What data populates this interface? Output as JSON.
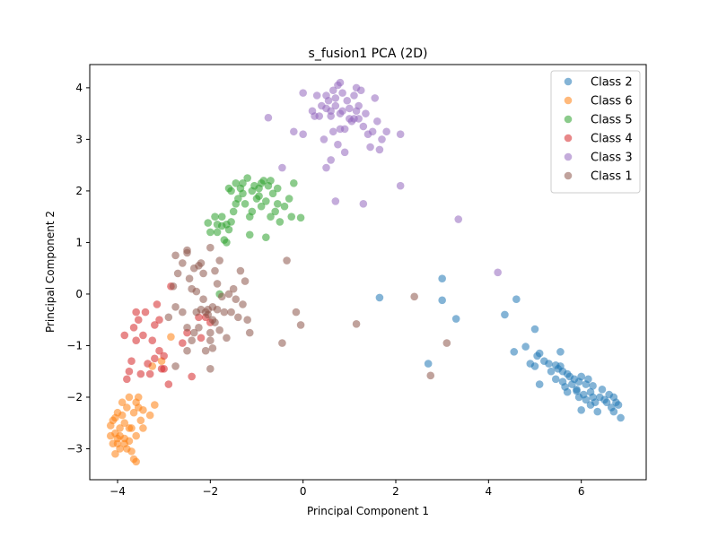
{
  "chart_data": {
    "type": "scatter",
    "title": "s_fusion1 PCA (2D)",
    "xlabel": "Principal Component 1",
    "ylabel": "Principal Component 2",
    "xlim": [
      -4.6,
      7.4
    ],
    "ylim": [
      -3.6,
      4.45
    ],
    "xticks": [
      -4,
      -2,
      0,
      2,
      4,
      6
    ],
    "yticks": [
      -3,
      -2,
      -1,
      0,
      1,
      2,
      3,
      4
    ],
    "grid": false,
    "legend_position": "top-right",
    "marker_alpha": 0.55,
    "series": [
      {
        "name": "Class 2",
        "color": "#1f77b4",
        "points": [
          [
            1.65,
            -0.07
          ],
          [
            3.0,
            0.3
          ],
          [
            3.0,
            -0.12
          ],
          [
            3.3,
            -0.48
          ],
          [
            2.7,
            -1.35
          ],
          [
            4.35,
            -0.4
          ],
          [
            4.6,
            -0.1
          ],
          [
            4.55,
            -1.12
          ],
          [
            4.8,
            -1.02
          ],
          [
            5.0,
            -0.68
          ],
          [
            4.9,
            -1.35
          ],
          [
            5.0,
            -1.4
          ],
          [
            5.1,
            -1.75
          ],
          [
            5.05,
            -1.2
          ],
          [
            5.1,
            -1.15
          ],
          [
            5.2,
            -1.3
          ],
          [
            5.3,
            -1.35
          ],
          [
            5.35,
            -1.5
          ],
          [
            5.45,
            -1.38
          ],
          [
            5.5,
            -1.45
          ],
          [
            5.55,
            -1.4
          ],
          [
            5.45,
            -1.65
          ],
          [
            5.6,
            -1.5
          ],
          [
            5.6,
            -1.7
          ],
          [
            5.55,
            -1.12
          ],
          [
            5.7,
            -1.55
          ],
          [
            5.7,
            -1.9
          ],
          [
            5.75,
            -1.6
          ],
          [
            5.8,
            -1.75
          ],
          [
            5.85,
            -1.65
          ],
          [
            5.9,
            -1.85
          ],
          [
            5.95,
            -2.0
          ],
          [
            5.95,
            -1.7
          ],
          [
            6.0,
            -2.25
          ],
          [
            6.05,
            -1.95
          ],
          [
            6.1,
            -1.75
          ],
          [
            6.1,
            -2.05
          ],
          [
            6.15,
            -1.65
          ],
          [
            6.2,
            -1.9
          ],
          [
            6.25,
            -2.0
          ],
          [
            6.25,
            -1.78
          ],
          [
            6.3,
            -2.1
          ],
          [
            6.35,
            -2.28
          ],
          [
            6.4,
            -2.0
          ],
          [
            6.45,
            -1.85
          ],
          [
            6.5,
            -2.05
          ],
          [
            6.55,
            -2.1
          ],
          [
            6.6,
            -1.95
          ],
          [
            6.65,
            -2.2
          ],
          [
            6.7,
            -2.28
          ],
          [
            6.75,
            -2.1
          ],
          [
            6.8,
            -2.15
          ],
          [
            6.85,
            -2.4
          ],
          [
            5.9,
            -1.88
          ],
          [
            6.0,
            -1.6
          ],
          [
            5.65,
            -1.8
          ],
          [
            6.2,
            -2.15
          ],
          [
            6.7,
            -2.0
          ]
        ]
      },
      {
        "name": "Class 6",
        "color": "#ff7f0e",
        "points": [
          [
            -2.85,
            -0.83
          ],
          [
            -3.05,
            -1.3
          ],
          [
            -3.25,
            -1.4
          ],
          [
            -3.2,
            -2.15
          ],
          [
            -3.3,
            -2.35
          ],
          [
            -3.45,
            -2.25
          ],
          [
            -3.5,
            -2.45
          ],
          [
            -3.55,
            -2.0
          ],
          [
            -3.6,
            -2.1
          ],
          [
            -3.65,
            -2.3
          ],
          [
            -3.7,
            -2.6
          ],
          [
            -3.75,
            -2.0
          ],
          [
            -3.8,
            -2.2
          ],
          [
            -3.85,
            -2.5
          ],
          [
            -3.9,
            -2.35
          ],
          [
            -3.95,
            -2.6
          ],
          [
            -4.0,
            -2.3
          ],
          [
            -4.05,
            -2.7
          ],
          [
            -4.1,
            -2.45
          ],
          [
            -4.15,
            -2.75
          ],
          [
            -4.0,
            -2.9
          ],
          [
            -3.95,
            -3.0
          ],
          [
            -3.8,
            -3.0
          ],
          [
            -3.75,
            -2.85
          ],
          [
            -3.7,
            -3.05
          ],
          [
            -4.05,
            -3.1
          ],
          [
            -3.85,
            -2.8
          ],
          [
            -3.65,
            -3.2
          ],
          [
            -3.6,
            -3.25
          ],
          [
            -4.1,
            -2.9
          ],
          [
            -4.15,
            -2.55
          ],
          [
            -3.9,
            -2.1
          ],
          [
            -3.75,
            -2.6
          ],
          [
            -3.55,
            -2.2
          ],
          [
            -3.45,
            -2.6
          ],
          [
            -3.6,
            -2.75
          ],
          [
            -4.0,
            -2.8
          ],
          [
            -3.85,
            -2.9
          ],
          [
            -4.05,
            -2.4
          ],
          [
            -3.95,
            -2.75
          ]
        ]
      },
      {
        "name": "Class 5",
        "color": "#2ca02c",
        "points": [
          [
            -2.05,
            1.38
          ],
          [
            -1.9,
            1.5
          ],
          [
            -1.85,
            1.2
          ],
          [
            -1.75,
            1.5
          ],
          [
            -1.7,
            1.05
          ],
          [
            -1.65,
            1.35
          ],
          [
            -1.6,
            1.25
          ],
          [
            -1.55,
            1.4
          ],
          [
            -1.5,
            1.6
          ],
          [
            -1.45,
            1.75
          ],
          [
            -1.4,
            1.85
          ],
          [
            -1.35,
            2.05
          ],
          [
            -1.3,
            1.95
          ],
          [
            -1.25,
            1.75
          ],
          [
            -1.2,
            2.25
          ],
          [
            -1.15,
            1.5
          ],
          [
            -1.1,
            2.0
          ],
          [
            -1.05,
            2.1
          ],
          [
            -1.0,
            1.85
          ],
          [
            -0.95,
            2.05
          ],
          [
            -0.9,
            1.7
          ],
          [
            -0.85,
            2.2
          ],
          [
            -0.8,
            1.8
          ],
          [
            -0.75,
            2.1
          ],
          [
            -0.7,
            1.5
          ],
          [
            -0.65,
            1.95
          ],
          [
            -0.6,
            1.6
          ],
          [
            -0.55,
            2.05
          ],
          [
            -0.5,
            1.4
          ],
          [
            -0.4,
            1.7
          ],
          [
            -0.3,
            1.85
          ],
          [
            -0.25,
            1.5
          ],
          [
            -0.2,
            2.15
          ],
          [
            -0.05,
            1.48
          ],
          [
            -0.8,
            1.1
          ],
          [
            -1.15,
            1.15
          ],
          [
            -1.65,
            1.0
          ],
          [
            -1.75,
            1.32
          ],
          [
            -1.45,
            2.15
          ],
          [
            -1.55,
            2.0
          ],
          [
            -1.6,
            2.05
          ],
          [
            -1.85,
            1.35
          ],
          [
            -2.0,
            1.2
          ],
          [
            -1.1,
            1.6
          ],
          [
            -0.7,
            2.2
          ],
          [
            -0.9,
            2.15
          ],
          [
            -1.3,
            2.15
          ],
          [
            -0.95,
            1.9
          ],
          [
            -0.55,
            1.75
          ],
          [
            -1.8,
            0.0
          ]
        ]
      },
      {
        "name": "Class 4",
        "color": "#d62728",
        "points": [
          [
            -2.85,
            0.15
          ],
          [
            -2.5,
            -0.75
          ],
          [
            -2.6,
            -0.95
          ],
          [
            -2.4,
            -1.6
          ],
          [
            -2.25,
            -0.45
          ],
          [
            -2.2,
            -0.85
          ],
          [
            -2.9,
            -1.75
          ],
          [
            -3.0,
            -1.2
          ],
          [
            -3.05,
            -1.45
          ],
          [
            -3.1,
            -0.5
          ],
          [
            -3.15,
            -0.2
          ],
          [
            -3.2,
            -0.6
          ],
          [
            -3.25,
            -0.9
          ],
          [
            -3.3,
            -1.55
          ],
          [
            -3.35,
            -1.35
          ],
          [
            -3.4,
            -0.35
          ],
          [
            -3.45,
            -0.8
          ],
          [
            -3.5,
            -1.55
          ],
          [
            -3.55,
            -0.5
          ],
          [
            -3.6,
            -0.9
          ],
          [
            -3.65,
            -0.65
          ],
          [
            -3.7,
            -1.3
          ],
          [
            -3.75,
            -1.5
          ],
          [
            -3.8,
            -1.65
          ],
          [
            -3.85,
            -0.8
          ],
          [
            -3.1,
            -1.1
          ],
          [
            -3.0,
            -1.45
          ],
          [
            -3.2,
            -1.25
          ],
          [
            -3.6,
            -0.35
          ],
          [
            -2.1,
            -0.45
          ],
          [
            -2.0,
            -0.55
          ]
        ]
      },
      {
        "name": "Class 3",
        "color": "#9467bd",
        "points": [
          [
            -0.75,
            3.42
          ],
          [
            -0.2,
            3.15
          ],
          [
            0.0,
            3.1
          ],
          [
            0.0,
            3.9
          ],
          [
            0.2,
            3.55
          ],
          [
            0.3,
            3.85
          ],
          [
            0.35,
            3.45
          ],
          [
            0.4,
            3.65
          ],
          [
            0.45,
            3.0
          ],
          [
            0.5,
            3.6
          ],
          [
            0.5,
            2.45
          ],
          [
            0.5,
            3.85
          ],
          [
            0.55,
            3.75
          ],
          [
            0.6,
            3.55
          ],
          [
            0.6,
            3.45
          ],
          [
            0.65,
            3.95
          ],
          [
            0.65,
            3.15
          ],
          [
            0.7,
            3.65
          ],
          [
            0.7,
            3.8
          ],
          [
            0.75,
            2.9
          ],
          [
            0.75,
            4.05
          ],
          [
            0.8,
            4.1
          ],
          [
            0.8,
            3.5
          ],
          [
            0.85,
            3.55
          ],
          [
            0.85,
            3.9
          ],
          [
            0.9,
            3.2
          ],
          [
            0.9,
            2.75
          ],
          [
            0.95,
            3.75
          ],
          [
            1.0,
            3.6
          ],
          [
            1.05,
            3.35
          ],
          [
            1.1,
            3.4
          ],
          [
            1.1,
            3.85
          ],
          [
            1.15,
            4.0
          ],
          [
            1.15,
            3.55
          ],
          [
            1.2,
            3.65
          ],
          [
            1.25,
            3.95
          ],
          [
            1.3,
            3.25
          ],
          [
            1.35,
            3.5
          ],
          [
            1.4,
            3.1
          ],
          [
            1.45,
            2.85
          ],
          [
            1.5,
            3.15
          ],
          [
            1.55,
            3.8
          ],
          [
            1.6,
            3.35
          ],
          [
            1.65,
            2.8
          ],
          [
            1.7,
            3.0
          ],
          [
            1.8,
            3.15
          ],
          [
            2.1,
            3.1
          ],
          [
            2.1,
            2.1
          ],
          [
            1.3,
            1.75
          ],
          [
            0.7,
            1.8
          ],
          [
            3.35,
            1.45
          ],
          [
            4.2,
            0.42
          ],
          [
            -0.45,
            2.45
          ],
          [
            0.25,
            3.45
          ],
          [
            0.6,
            2.6
          ],
          [
            1.0,
            3.4
          ],
          [
            0.8,
            3.2
          ],
          [
            1.2,
            3.4
          ]
        ]
      },
      {
        "name": "Class 1",
        "color": "#8c564b",
        "points": [
          [
            -2.75,
            0.75
          ],
          [
            -2.7,
            0.4
          ],
          [
            -2.6,
            0.6
          ],
          [
            -2.5,
            0.85
          ],
          [
            -2.5,
            0.8
          ],
          [
            -2.45,
            0.3
          ],
          [
            -2.4,
            0.1
          ],
          [
            -2.35,
            0.5
          ],
          [
            -2.3,
            0.05
          ],
          [
            -2.3,
            -0.35
          ],
          [
            -2.25,
            0.55
          ],
          [
            -2.2,
            -0.3
          ],
          [
            -2.2,
            0.6
          ],
          [
            -2.15,
            0.4
          ],
          [
            -2.15,
            -0.1
          ],
          [
            -2.1,
            -0.35
          ],
          [
            -2.05,
            -0.3
          ],
          [
            -2.0,
            0.9
          ],
          [
            -2.0,
            -0.75
          ],
          [
            -1.95,
            -0.5
          ],
          [
            -1.9,
            -0.55
          ],
          [
            -1.9,
            0.45
          ],
          [
            -1.85,
            0.2
          ],
          [
            -1.85,
            -0.3
          ],
          [
            -1.8,
            -0.7
          ],
          [
            -1.8,
            0.65
          ],
          [
            -1.75,
            -0.05
          ],
          [
            -1.7,
            -0.35
          ],
          [
            -1.65,
            -0.85
          ],
          [
            -1.6,
            0.0
          ],
          [
            -1.55,
            -0.35
          ],
          [
            -1.5,
            0.1
          ],
          [
            -1.45,
            -0.1
          ],
          [
            -1.4,
            -0.45
          ],
          [
            -1.35,
            0.45
          ],
          [
            -1.3,
            -0.2
          ],
          [
            -1.25,
            0.25
          ],
          [
            -1.2,
            -0.5
          ],
          [
            -1.15,
            -0.75
          ],
          [
            -2.9,
            -0.45
          ],
          [
            -2.75,
            -0.25
          ],
          [
            -2.6,
            -0.35
          ],
          [
            -2.5,
            -0.65
          ],
          [
            -2.4,
            -0.9
          ],
          [
            -2.0,
            -1.45
          ],
          [
            -2.0,
            -0.9
          ],
          [
            -2.1,
            -1.1
          ],
          [
            -1.95,
            -1.05
          ],
          [
            -2.75,
            -1.4
          ],
          [
            -2.5,
            -1.1
          ],
          [
            -0.35,
            0.65
          ],
          [
            -0.15,
            -0.35
          ],
          [
            -0.05,
            -0.6
          ],
          [
            -0.45,
            -0.95
          ],
          [
            1.15,
            -0.58
          ],
          [
            2.4,
            -0.05
          ],
          [
            3.1,
            -0.95
          ],
          [
            2.75,
            -1.58
          ],
          [
            -2.25,
            -0.65
          ],
          [
            -2.35,
            -0.75
          ],
          [
            -1.95,
            -0.25
          ],
          [
            -2.8,
            0.15
          ],
          [
            -2.05,
            -0.4
          ]
        ]
      }
    ]
  }
}
